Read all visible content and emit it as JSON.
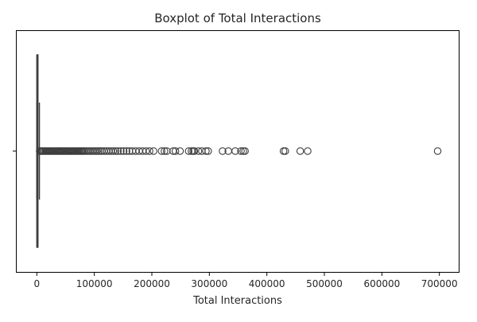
{
  "chart_data": {
    "type": "boxplot",
    "title": "Boxplot of Total Interactions",
    "xlabel": "Total Interactions",
    "ylabel": "",
    "xlim": [
      -35000,
      735000
    ],
    "xticks": [
      0,
      100000,
      200000,
      300000,
      400000,
      500000,
      600000,
      700000
    ],
    "xtick_labels": [
      "0",
      "100000",
      "200000",
      "300000",
      "400000",
      "500000",
      "600000",
      "700000"
    ],
    "grid": false,
    "orientation": "horizontal",
    "box": {
      "q1": 0,
      "median": 500,
      "q3": 2000,
      "whisker_low": 0,
      "whisker_high": 4500
    },
    "outliers": [
      5000,
      7000,
      9000,
      11000,
      13000,
      15000,
      17000,
      19000,
      21000,
      23000,
      25000,
      27000,
      29000,
      31000,
      33000,
      35000,
      37000,
      39000,
      41000,
      43000,
      45000,
      47000,
      49000,
      51000,
      53000,
      55000,
      57000,
      59000,
      61000,
      63000,
      65000,
      67000,
      69000,
      71000,
      73000,
      75000,
      77000,
      79000,
      81000,
      83000,
      86000,
      89000,
      92000,
      95000,
      98000,
      101000,
      104000,
      107000,
      110000,
      113000,
      117000,
      121000,
      125000,
      129000,
      133000,
      137000,
      141000,
      146000,
      151000,
      156000,
      161000,
      166000,
      172000,
      178000,
      184000,
      190000,
      196000,
      203000,
      217000,
      222000,
      226000,
      237000,
      241000,
      249000,
      264000,
      269000,
      272000,
      274000,
      281000,
      287000,
      294000,
      298000,
      323000,
      333000,
      345000,
      355000,
      359000,
      362000,
      429000,
      432000,
      458000,
      471000,
      697000
    ]
  }
}
